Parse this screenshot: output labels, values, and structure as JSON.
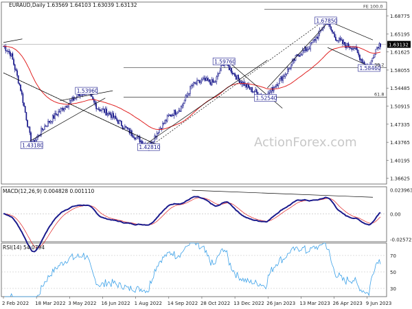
{
  "chart_data": {
    "type": "candlestick",
    "symbol_header": "EURAUD,Daily  1.63569 1.64103 1.63039 1.63132",
    "watermark": "ActionForex.com",
    "price_panel": {
      "ylim": [
        1.355,
        1.715
      ],
      "y_ticks": [
        "1.68775",
        "1.65195",
        "1.61625",
        "1.58055",
        "1.54485",
        "1.50915",
        "1.47335",
        "1.43765",
        "1.40195",
        "1.36625"
      ],
      "last_price_label": "1.63132",
      "fib_labels": [
        {
          "text": "FE 100.0",
          "price": 1.701
        },
        {
          "text": "38.2",
          "price": 1.585
        },
        {
          "text": "61.8",
          "price": 1.527
        }
      ],
      "annotations": [
        {
          "text": "1.53960",
          "t": 0.22,
          "price": 1.5396
        },
        {
          "text": "1.43180",
          "t": 0.075,
          "price": 1.4318
        },
        {
          "text": "1.42810",
          "t": 0.385,
          "price": 1.4281
        },
        {
          "text": "1.59760",
          "t": 0.585,
          "price": 1.5976
        },
        {
          "text": "1.52540",
          "t": 0.695,
          "price": 1.5254
        },
        {
          "text": "1.67850",
          "t": 0.855,
          "price": 1.6785
        },
        {
          "text": "1.58460",
          "t": 0.97,
          "price": 1.5846
        }
      ],
      "key_points": [
        [
          0.0,
          1.628
        ],
        [
          0.02,
          1.612
        ],
        [
          0.045,
          1.545
        ],
        [
          0.075,
          1.4318
        ],
        [
          0.11,
          1.47
        ],
        [
          0.15,
          1.5
        ],
        [
          0.18,
          1.52
        ],
        [
          0.22,
          1.5396
        ],
        [
          0.25,
          1.505
        ],
        [
          0.28,
          1.495
        ],
        [
          0.31,
          1.475
        ],
        [
          0.34,
          1.455
        ],
        [
          0.385,
          1.4281
        ],
        [
          0.41,
          1.46
        ],
        [
          0.44,
          1.49
        ],
        [
          0.47,
          1.505
        ],
        [
          0.5,
          1.55
        ],
        [
          0.53,
          1.56
        ],
        [
          0.56,
          1.555
        ],
        [
          0.585,
          1.5976
        ],
        [
          0.62,
          1.565
        ],
        [
          0.65,
          1.545
        ],
        [
          0.695,
          1.5254
        ],
        [
          0.72,
          1.55
        ],
        [
          0.75,
          1.575
        ],
        [
          0.78,
          1.61
        ],
        [
          0.81,
          1.625
        ],
        [
          0.84,
          1.655
        ],
        [
          0.855,
          1.6785
        ],
        [
          0.88,
          1.645
        ],
        [
          0.905,
          1.63
        ],
        [
          0.93,
          1.625
        ],
        [
          0.95,
          1.6
        ],
        [
          0.97,
          1.5846
        ],
        [
          0.985,
          1.618
        ],
        [
          0.995,
          1.6313
        ]
      ]
    },
    "macd_panel": {
      "title": "MACD(12,26,9) 0.004828 0.001110",
      "ylim": [
        -0.028,
        0.027
      ],
      "y_ticks": [
        "0.023963",
        "0.00",
        "-0.025726"
      ]
    },
    "rsi_panel": {
      "title": "RSI(14) 54.0794",
      "ylim": [
        20,
        85
      ],
      "y_ticks": [
        "70",
        "50",
        "30"
      ]
    },
    "x_labels": [
      "2 Feb 2022",
      "18 Mar 2022",
      "3 May 2022",
      "16 Jun 2022",
      "1 Aug 2022",
      "14 Sep 2022",
      "28 Oct 2022",
      "13 Dec 2022",
      "26 Jan 2023",
      "13 Mar 2023",
      "26 Apr 2023",
      "9 Jun 2023"
    ],
    "colors": {
      "candle": "#1a1a8c",
      "ema": "#e02020",
      "trend": "#000000",
      "macd": "#1a1a8c",
      "signal": "#e02020",
      "rsi": "#3aa0e8"
    }
  }
}
